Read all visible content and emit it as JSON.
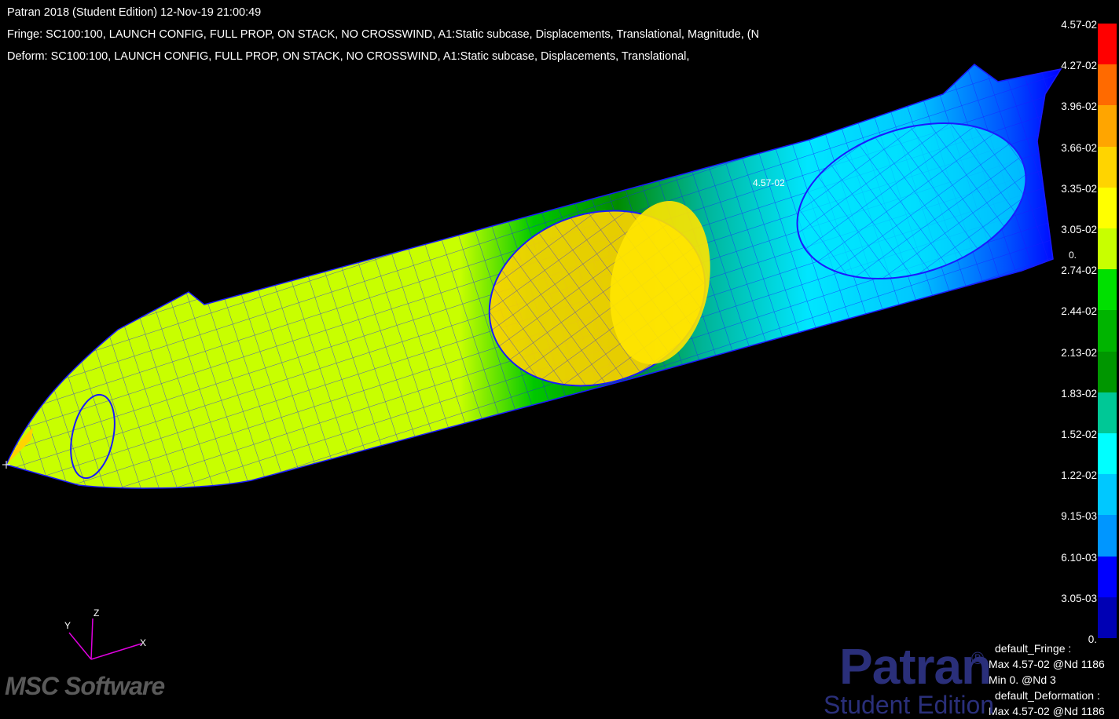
{
  "header": {
    "title": "Patran 2018  (Student Edition) 12-Nov-19 21:00:49",
    "fringe": "Fringe: SC100:100, LAUNCH CONFIG, FULL PROP, ON STACK, NO CROSSWIND, A1:Static subcase, Displacements, Translational, Magnitude, (N",
    "deform": "Deform: SC100:100, LAUNCH CONFIG, FULL PROP, ON STACK, NO CROSSWIND, A1:Static subcase, Displacements, Translational,"
  },
  "legend": {
    "labels": [
      "4.57-02",
      "4.27-02",
      "3.96-02",
      "3.66-02",
      "3.35-02",
      "3.05-02",
      "2.74-02",
      "2.44-02",
      "2.13-02",
      "1.83-02",
      "1.52-02",
      "1.22-02",
      "9.15-03",
      "6.10-03",
      "3.05-03",
      "0."
    ],
    "colors": [
      "#ff0000",
      "#ff6a00",
      "#ffa500",
      "#ffd400",
      "#ffff00",
      "#c8ff00",
      "#00e000",
      "#00b400",
      "#009600",
      "#00c896",
      "#00ffff",
      "#00c8ff",
      "#0096ff",
      "#0000ff",
      "#0000b4"
    ]
  },
  "viewport": {
    "marker_label": "4.57-02",
    "origin_label": "0."
  },
  "axes": {
    "x": "X",
    "y": "Y",
    "z": "Z"
  },
  "info": {
    "fringe_title": "default_Fringe :",
    "fringe_max": "Max 4.57-02 @Nd 1186",
    "fringe_min": "Min  0. @Nd 3",
    "deform_title": "default_Deformation :",
    "deform_max": "Max 4.57-02 @Nd 1186"
  },
  "branding": {
    "patran": "Patran",
    "registered": "®",
    "edition": "Student Edition",
    "msc": "MSC Software"
  }
}
